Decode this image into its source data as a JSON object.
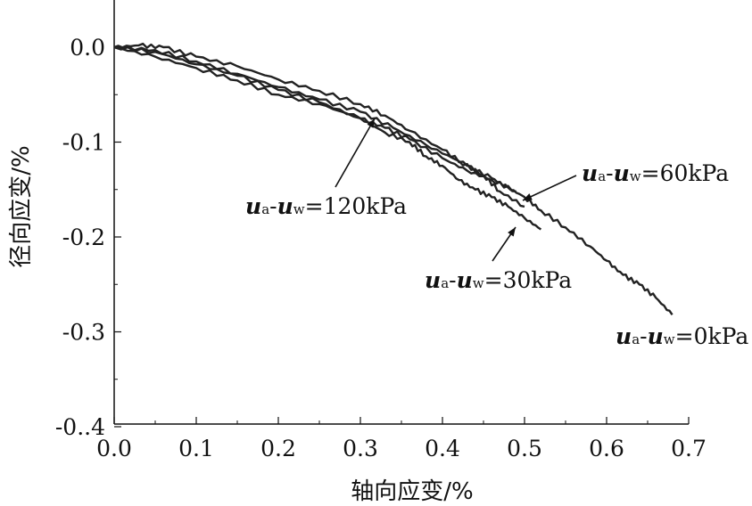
{
  "chart_data": {
    "type": "line",
    "xlabel": "轴向应变/%",
    "ylabel": "径向应变/%",
    "xlim": [
      0.0,
      0.7
    ],
    "ylim": [
      -0.4,
      0.05
    ],
    "x_ticks": [
      0.0,
      0.1,
      0.2,
      0.3,
      0.4,
      0.5,
      0.6,
      0.7
    ],
    "x_tick_labels": [
      "0.0",
      "0.1",
      "0.2",
      "0.3",
      "0.4",
      "0.5",
      "0.6",
      "0.7"
    ],
    "y_ticks": [
      0.0,
      -0.1,
      -0.2,
      -0.3,
      -0.4
    ],
    "y_tick_labels": [
      "0.0",
      "-0.1",
      "-0.2",
      "-0.3",
      "-0..4"
    ],
    "grid": false,
    "series": [
      {
        "name": "ua-uw=0kPa",
        "label_parts": [
          "u",
          "a",
          "-",
          "u",
          "w",
          "=0kPa"
        ],
        "x": [
          0.0,
          0.03,
          0.06,
          0.1,
          0.15,
          0.2,
          0.25,
          0.3,
          0.33,
          0.36,
          0.4,
          0.43,
          0.46,
          0.48,
          0.5,
          0.52,
          0.55,
          0.58,
          0.6,
          0.62,
          0.64,
          0.66,
          0.68
        ],
        "y": [
          0.0,
          0.002,
          0.0,
          -0.01,
          -0.02,
          -0.034,
          -0.046,
          -0.06,
          -0.072,
          -0.088,
          -0.108,
          -0.125,
          -0.138,
          -0.148,
          -0.158,
          -0.172,
          -0.19,
          -0.21,
          -0.225,
          -0.24,
          -0.25,
          -0.264,
          -0.282
        ],
        "color": "#222222"
      },
      {
        "name": "ua-uw=30kPa",
        "label_parts": [
          "u",
          "a",
          "-",
          "u",
          "w",
          "=30kPa"
        ],
        "x": [
          0.0,
          0.05,
          0.1,
          0.15,
          0.2,
          0.25,
          0.3,
          0.33,
          0.36,
          0.38,
          0.4,
          0.42,
          0.44,
          0.46,
          0.48,
          0.5,
          0.52
        ],
        "y": [
          0.0,
          -0.005,
          -0.018,
          -0.03,
          -0.045,
          -0.058,
          -0.075,
          -0.09,
          -0.1,
          -0.115,
          -0.125,
          -0.14,
          -0.15,
          -0.158,
          -0.168,
          -0.18,
          -0.192
        ],
        "color": "#222222"
      },
      {
        "name": "ua-uw=60kPa",
        "label_parts": [
          "u",
          "a",
          "-",
          "u",
          "w",
          "=60kPa"
        ],
        "x": [
          0.0,
          0.05,
          0.1,
          0.15,
          0.2,
          0.25,
          0.3,
          0.34,
          0.38,
          0.42,
          0.45,
          0.47,
          0.5
        ],
        "y": [
          0.0,
          -0.003,
          -0.015,
          -0.028,
          -0.042,
          -0.055,
          -0.068,
          -0.085,
          -0.103,
          -0.12,
          -0.135,
          -0.152,
          -0.168
        ],
        "color": "#222222"
      },
      {
        "name": "ua-uw=120kPa",
        "label_parts": [
          "u",
          "a",
          "-",
          "u",
          "w",
          "=120kPa"
        ],
        "x": [
          0.0,
          0.05,
          0.1,
          0.15,
          0.2,
          0.25,
          0.3,
          0.33,
          0.36,
          0.4,
          0.43,
          0.46,
          0.49
        ],
        "y": [
          0.0,
          -0.01,
          -0.022,
          -0.035,
          -0.05,
          -0.06,
          -0.075,
          -0.085,
          -0.097,
          -0.117,
          -0.13,
          -0.14,
          -0.152
        ],
        "color": "#222222"
      }
    ]
  }
}
